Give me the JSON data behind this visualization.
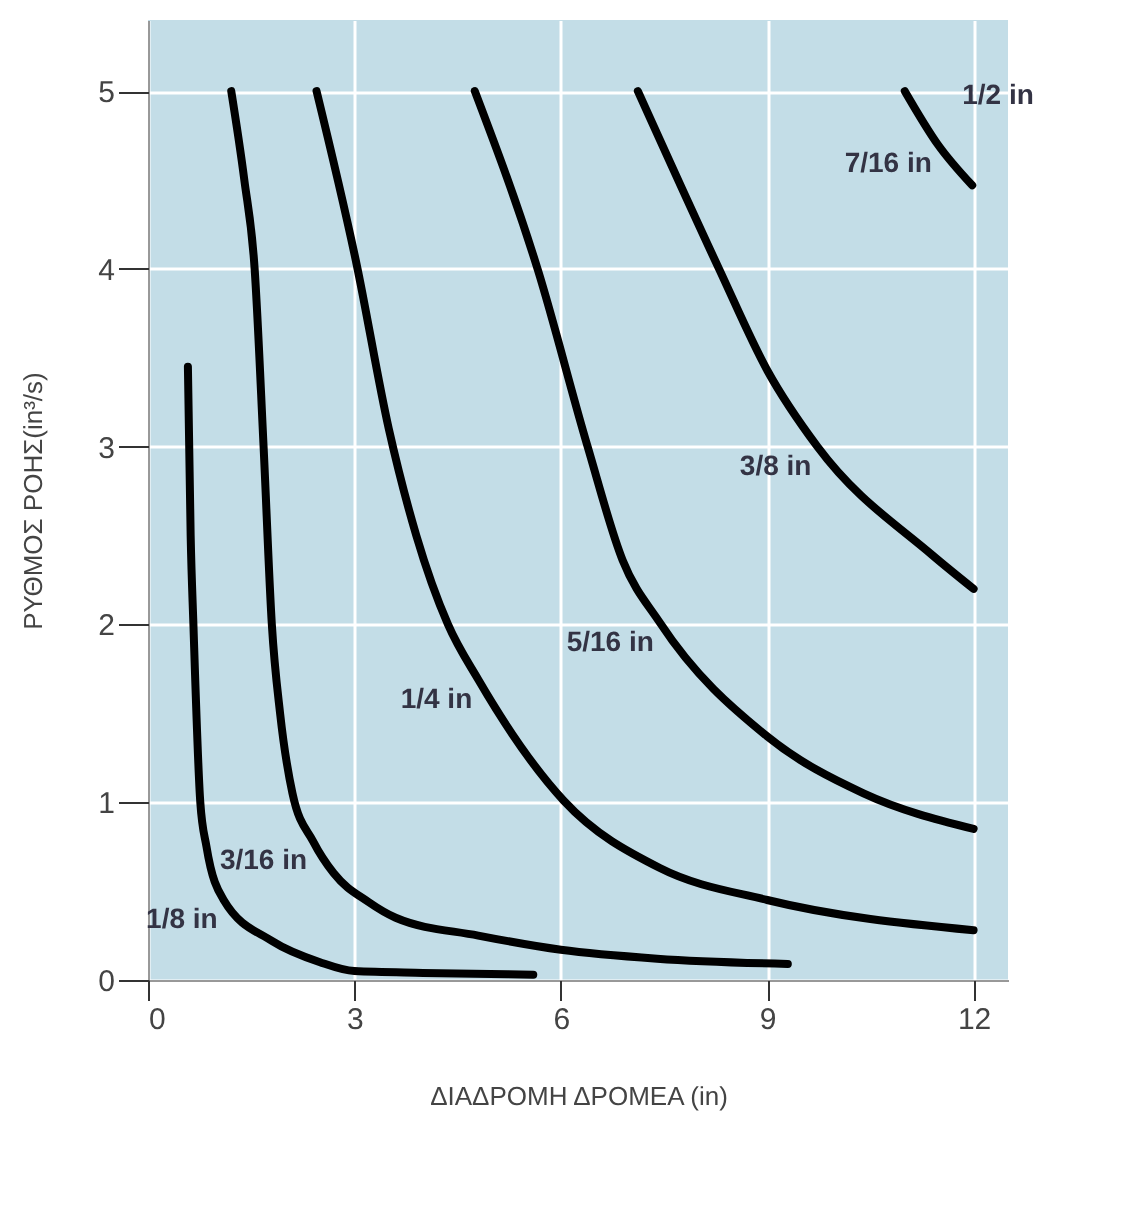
{
  "chart_data": {
    "type": "line",
    "xlabel": "ΔΙΑΔΡΟΜΗ ΔΡΟΜΕΑ (in)",
    "ylabel": "ΡΥΘΜΟΣ ΡΟΗΣ(in³/s)",
    "xlim": [
      0,
      12.5
    ],
    "ylim": [
      0,
      5.4
    ],
    "xticks": [
      0,
      3,
      6,
      9,
      12
    ],
    "yticks": [
      0,
      1,
      2,
      3,
      4,
      5
    ],
    "grid": true,
    "legend": false,
    "marker": "none",
    "line_style": "solid",
    "series": [
      {
        "name": "1/8 in",
        "color": "#000000",
        "x": [
          0.58,
          0.62,
          0.66,
          0.76,
          0.85,
          1.1,
          1.8,
          2.5,
          3,
          4,
          5.6
        ],
        "values": [
          3.45,
          2.5,
          2,
          1,
          0.75,
          0.45,
          0.22,
          0.1,
          0.05,
          0.04,
          0.03
        ]
      },
      {
        "name": "3/16 in",
        "color": "#000000",
        "x": [
          1.21,
          1.4,
          1.55,
          1.68,
          1.8,
          1.92,
          2.1,
          2.4,
          2.7,
          3.2,
          3.6,
          4.8,
          6,
          7.4,
          9.3
        ],
        "values": [
          5,
          4.5,
          4,
          3,
          2,
          1.5,
          1.05,
          0.78,
          0.6,
          0.44,
          0.35,
          0.25,
          0.17,
          0.12,
          0.09
        ]
      },
      {
        "name": "1/4 in",
        "color": "#000000",
        "x": [
          2.45,
          3.03,
          3.5,
          3.9,
          4.36,
          4.8,
          6.04,
          7.44,
          9,
          12
        ],
        "values": [
          5,
          4.03,
          3.1,
          2.5,
          2,
          1.69,
          1.01,
          0.63,
          0.45,
          0.28
        ]
      },
      {
        "name": "5/16 in",
        "color": "#000000",
        "x": [
          4.75,
          5.67,
          6.39,
          6.9,
          7.44,
          9,
          10.4,
          12
        ],
        "values": [
          5,
          3.99,
          3,
          2.36,
          2.01,
          1.37,
          1.05,
          0.85
        ]
      },
      {
        "name": "3/8 in",
        "color": "#000000",
        "x": [
          7.12,
          8.3,
          9,
          9.73,
          11.4,
          12
        ],
        "values": [
          5,
          4,
          3.43,
          3,
          2.39,
          2.2
        ]
      },
      {
        "name": "7/16 in",
        "color": "#000000",
        "x": [
          11,
          11.48,
          11.98
        ],
        "values": [
          5,
          4.7,
          4.47
        ]
      }
    ],
    "annotations": [
      "1/2 in"
    ]
  }
}
